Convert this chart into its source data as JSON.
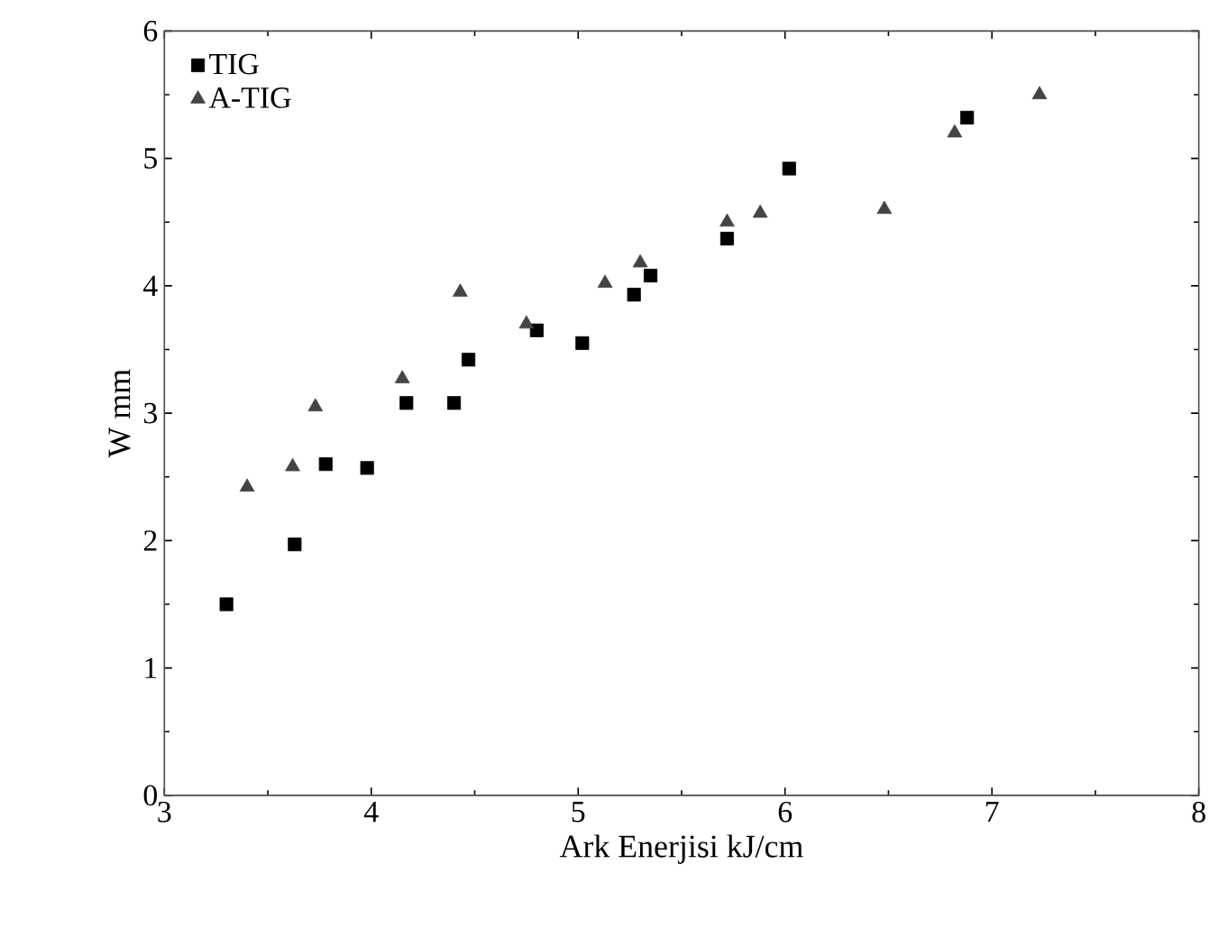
{
  "chart_data": {
    "type": "scatter",
    "xlabel": "Ark Enerjisi  kJ/cm",
    "ylabel": "W     mm",
    "xlim": [
      3,
      8
    ],
    "ylim": [
      0,
      6
    ],
    "xticks": [
      3,
      4,
      5,
      6,
      7,
      8
    ],
    "yticks": [
      0,
      1,
      2,
      3,
      4,
      5,
      6
    ],
    "grid": false,
    "legend": "top left",
    "series": [
      {
        "name": "TIG",
        "color": "#000000",
        "marker": "square",
        "x": [
          3.3,
          3.63,
          3.78,
          3.98,
          4.17,
          4.4,
          4.47,
          4.8,
          5.02,
          5.27,
          5.35,
          5.72,
          6.02,
          6.88
        ],
        "values": [
          1.5,
          1.97,
          2.6,
          2.57,
          3.08,
          3.08,
          3.42,
          3.65,
          3.55,
          3.93,
          4.08,
          4.37,
          4.92,
          5.32
        ]
      },
      {
        "name": "A-TIG",
        "color": "#444444",
        "marker": "triangle",
        "x": [
          3.4,
          3.62,
          3.73,
          4.15,
          4.43,
          4.75,
          5.13,
          5.3,
          5.72,
          5.88,
          6.48,
          6.82,
          7.23
        ],
        "values": [
          2.42,
          2.58,
          3.05,
          3.27,
          3.95,
          3.7,
          4.02,
          4.18,
          4.5,
          4.57,
          4.6,
          5.2,
          5.5
        ]
      }
    ]
  }
}
